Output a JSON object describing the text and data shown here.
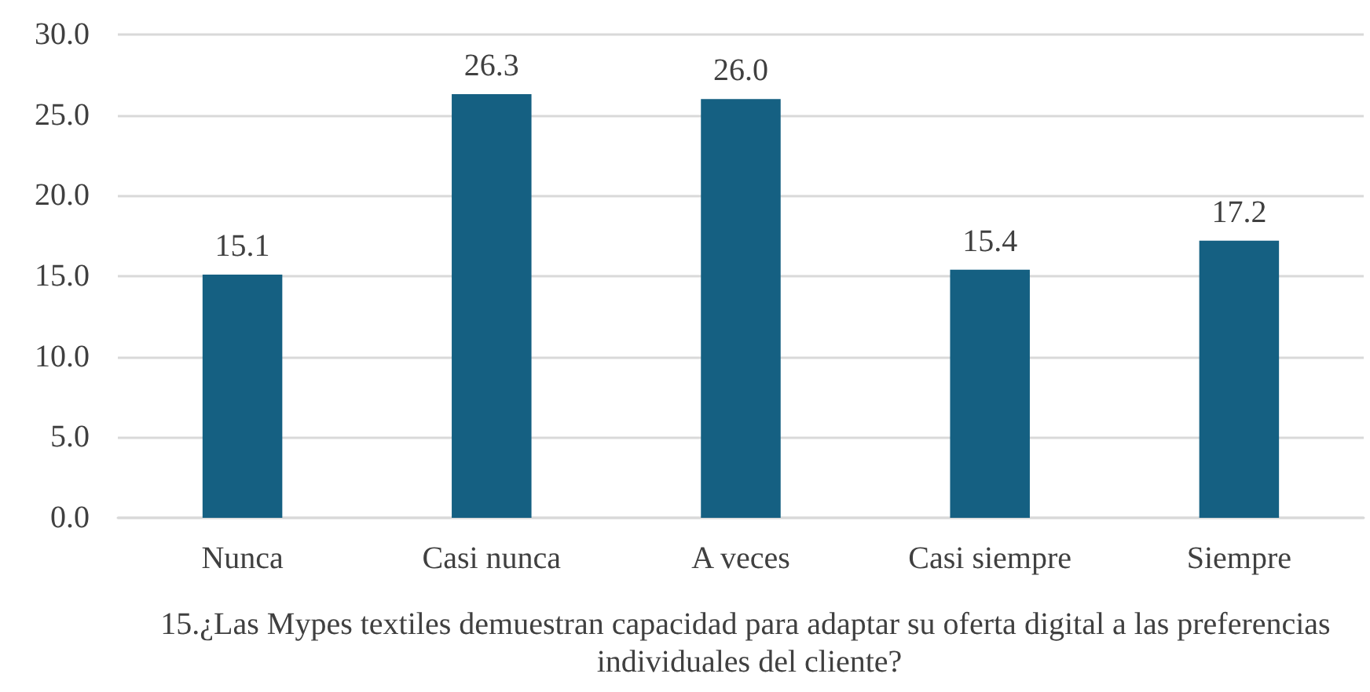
{
  "chart_data": {
    "type": "bar",
    "categories": [
      "Nunca",
      "Casi nunca",
      "A veces",
      "Casi siempre",
      "Siempre"
    ],
    "values": [
      15.1,
      26.3,
      26.0,
      15.4,
      17.2
    ],
    "value_labels": [
      "15.1",
      "26.3",
      "26.0",
      "15.4",
      "17.2"
    ],
    "color": "#156082",
    "xlabel": "15.¿Las Mypes textiles demuestran capacidad para adaptar su oferta digital a las preferencias individuales del cliente?",
    "ylim": [
      0,
      30
    ],
    "yticks": [
      {
        "value": 0,
        "label": "0.0"
      },
      {
        "value": 5,
        "label": "5.0"
      },
      {
        "value": 10,
        "label": "10.0"
      },
      {
        "value": 15,
        "label": "15.0"
      },
      {
        "value": 20,
        "label": "20.0"
      },
      {
        "value": 25,
        "label": "25.0"
      },
      {
        "value": 30,
        "label": "30.0"
      }
    ],
    "grid": "y"
  }
}
